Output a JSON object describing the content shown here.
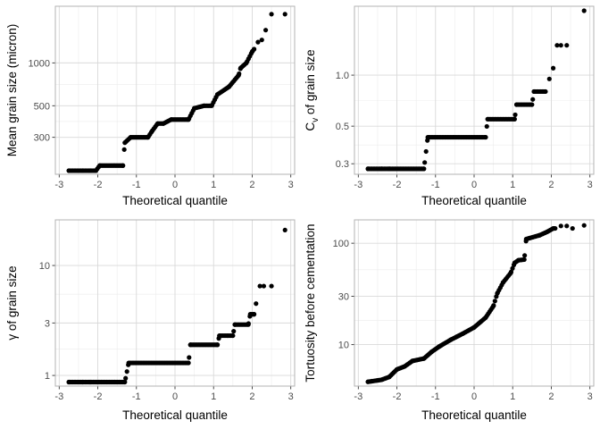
{
  "chart_data": [
    {
      "type": "scatter",
      "scale": "log",
      "xlabel": "Theoretical quantile",
      "ylabel": "Mean grain size (micron)",
      "x_ticks": [
        -3,
        -2,
        -1,
        0,
        1,
        2,
        3
      ],
      "y_ticks": [
        300,
        500,
        1000
      ],
      "xlim": [
        -3.1,
        3.1
      ],
      "ylim": [
        165,
        2500
      ],
      "grid": true,
      "ramp": [
        [
          -2.75,
          175
        ],
        [
          -2.4,
          175
        ],
        [
          -2.2,
          175
        ],
        [
          -2.05,
          175
        ],
        [
          -1.95,
          190
        ],
        [
          -1.35,
          190
        ],
        [
          -1.3,
          275
        ],
        [
          -1.15,
          300
        ],
        [
          -0.7,
          300
        ],
        [
          -0.6,
          330
        ],
        [
          -0.45,
          375
        ],
        [
          -0.3,
          375
        ],
        [
          -0.1,
          400
        ],
        [
          0.35,
          400
        ],
        [
          0.5,
          480
        ],
        [
          0.75,
          500
        ],
        [
          0.95,
          500
        ],
        [
          1.1,
          600
        ],
        [
          1.4,
          680
        ],
        [
          1.65,
          820
        ],
        [
          1.7,
          920
        ],
        [
          1.85,
          1000
        ],
        [
          2.0,
          1200
        ],
        [
          2.05,
          1250
        ]
      ],
      "extra_points": [
        [
          2.15,
          1400
        ],
        [
          2.25,
          1450
        ],
        [
          2.35,
          1700
        ],
        [
          2.5,
          2200
        ],
        [
          2.85,
          2200
        ]
      ]
    },
    {
      "type": "scatter",
      "scale": "log",
      "xlabel": "Theoretical quantile",
      "ylabel": {
        "main": "C",
        "sub": "v",
        "rest": " of grain size"
      },
      "x_ticks": [
        -3,
        -2,
        -1,
        0,
        1,
        2,
        3
      ],
      "y_ticks": [
        0.3,
        0.5,
        1.0
      ],
      "y_tick_labels": [
        "0.3",
        "0.5",
        "1.0"
      ],
      "xlim": [
        -3.1,
        3.1
      ],
      "ylim": [
        0.26,
        2.55
      ],
      "grid": true,
      "ramp": [
        [
          -2.75,
          0.28
        ],
        [
          -2.4,
          0.28
        ],
        [
          -2.2,
          0.28
        ],
        [
          -1.3,
          0.28
        ],
        [
          -1.2,
          0.43
        ],
        [
          0.3,
          0.43
        ],
        [
          0.35,
          0.55
        ],
        [
          1.05,
          0.55
        ],
        [
          1.1,
          0.67
        ],
        [
          1.5,
          0.67
        ],
        [
          1.55,
          0.8
        ],
        [
          1.85,
          0.8
        ]
      ],
      "extra_points": [
        [
          1.95,
          0.95
        ],
        [
          2.05,
          1.1
        ],
        [
          2.15,
          1.5
        ],
        [
          2.25,
          1.5
        ],
        [
          2.4,
          1.5
        ],
        [
          2.85,
          2.4
        ]
      ]
    },
    {
      "type": "scatter",
      "scale": "log",
      "xlabel": "Theoretical quantile",
      "ylabel": "γ of grain size",
      "x_ticks": [
        -3,
        -2,
        -1,
        0,
        1,
        2,
        3
      ],
      "y_ticks": [
        1,
        3,
        10
      ],
      "xlim": [
        -3.1,
        3.1
      ],
      "ylim": [
        0.8,
        26
      ],
      "grid": true,
      "ramp": [
        [
          -2.75,
          0.87
        ],
        [
          -2.4,
          0.87
        ],
        [
          -2.2,
          0.87
        ],
        [
          -1.3,
          0.87
        ],
        [
          -1.2,
          1.3
        ],
        [
          0.35,
          1.3
        ],
        [
          0.4,
          1.9
        ],
        [
          1.1,
          1.9
        ],
        [
          1.15,
          2.3
        ],
        [
          1.5,
          2.3
        ],
        [
          1.55,
          2.9
        ],
        [
          1.9,
          2.9
        ],
        [
          1.95,
          3.6
        ],
        [
          2.05,
          3.6
        ]
      ],
      "extra_points": [
        [
          2.1,
          4.5
        ],
        [
          2.2,
          6.5
        ],
        [
          2.3,
          6.5
        ],
        [
          2.5,
          6.5
        ],
        [
          2.85,
          21
        ]
      ]
    },
    {
      "type": "scatter",
      "scale": "log",
      "xlabel": "Theoretical quantile",
      "ylabel": "Tortuosity before cementation",
      "x_ticks": [
        -3,
        -2,
        -1,
        0,
        1,
        2,
        3
      ],
      "y_ticks": [
        10,
        30,
        100
      ],
      "xlim": [
        -3.1,
        3.1
      ],
      "ylim": [
        3.9,
        170
      ],
      "grid": true,
      "ramp": [
        [
          -2.75,
          4.3
        ],
        [
          -2.4,
          4.5
        ],
        [
          -2.2,
          4.8
        ],
        [
          -2.0,
          5.7
        ],
        [
          -1.8,
          6.1
        ],
        [
          -1.6,
          6.9
        ],
        [
          -1.3,
          7.3
        ],
        [
          -1.1,
          8.5
        ],
        [
          -0.9,
          9.6
        ],
        [
          -0.6,
          11.2
        ],
        [
          -0.3,
          12.8
        ],
        [
          0.0,
          14.8
        ],
        [
          0.3,
          18.5
        ],
        [
          0.5,
          24
        ],
        [
          0.6,
          32
        ],
        [
          0.75,
          41
        ],
        [
          0.95,
          51
        ],
        [
          1.05,
          64
        ],
        [
          1.15,
          68
        ],
        [
          1.3,
          69
        ],
        [
          1.35,
          110
        ],
        [
          1.7,
          120
        ],
        [
          1.9,
          130
        ],
        [
          2.05,
          140
        ],
        [
          2.1,
          140
        ]
      ],
      "extra_points": [
        [
          2.25,
          148
        ],
        [
          2.4,
          148
        ],
        [
          2.55,
          140
        ],
        [
          2.85,
          150
        ]
      ]
    }
  ]
}
